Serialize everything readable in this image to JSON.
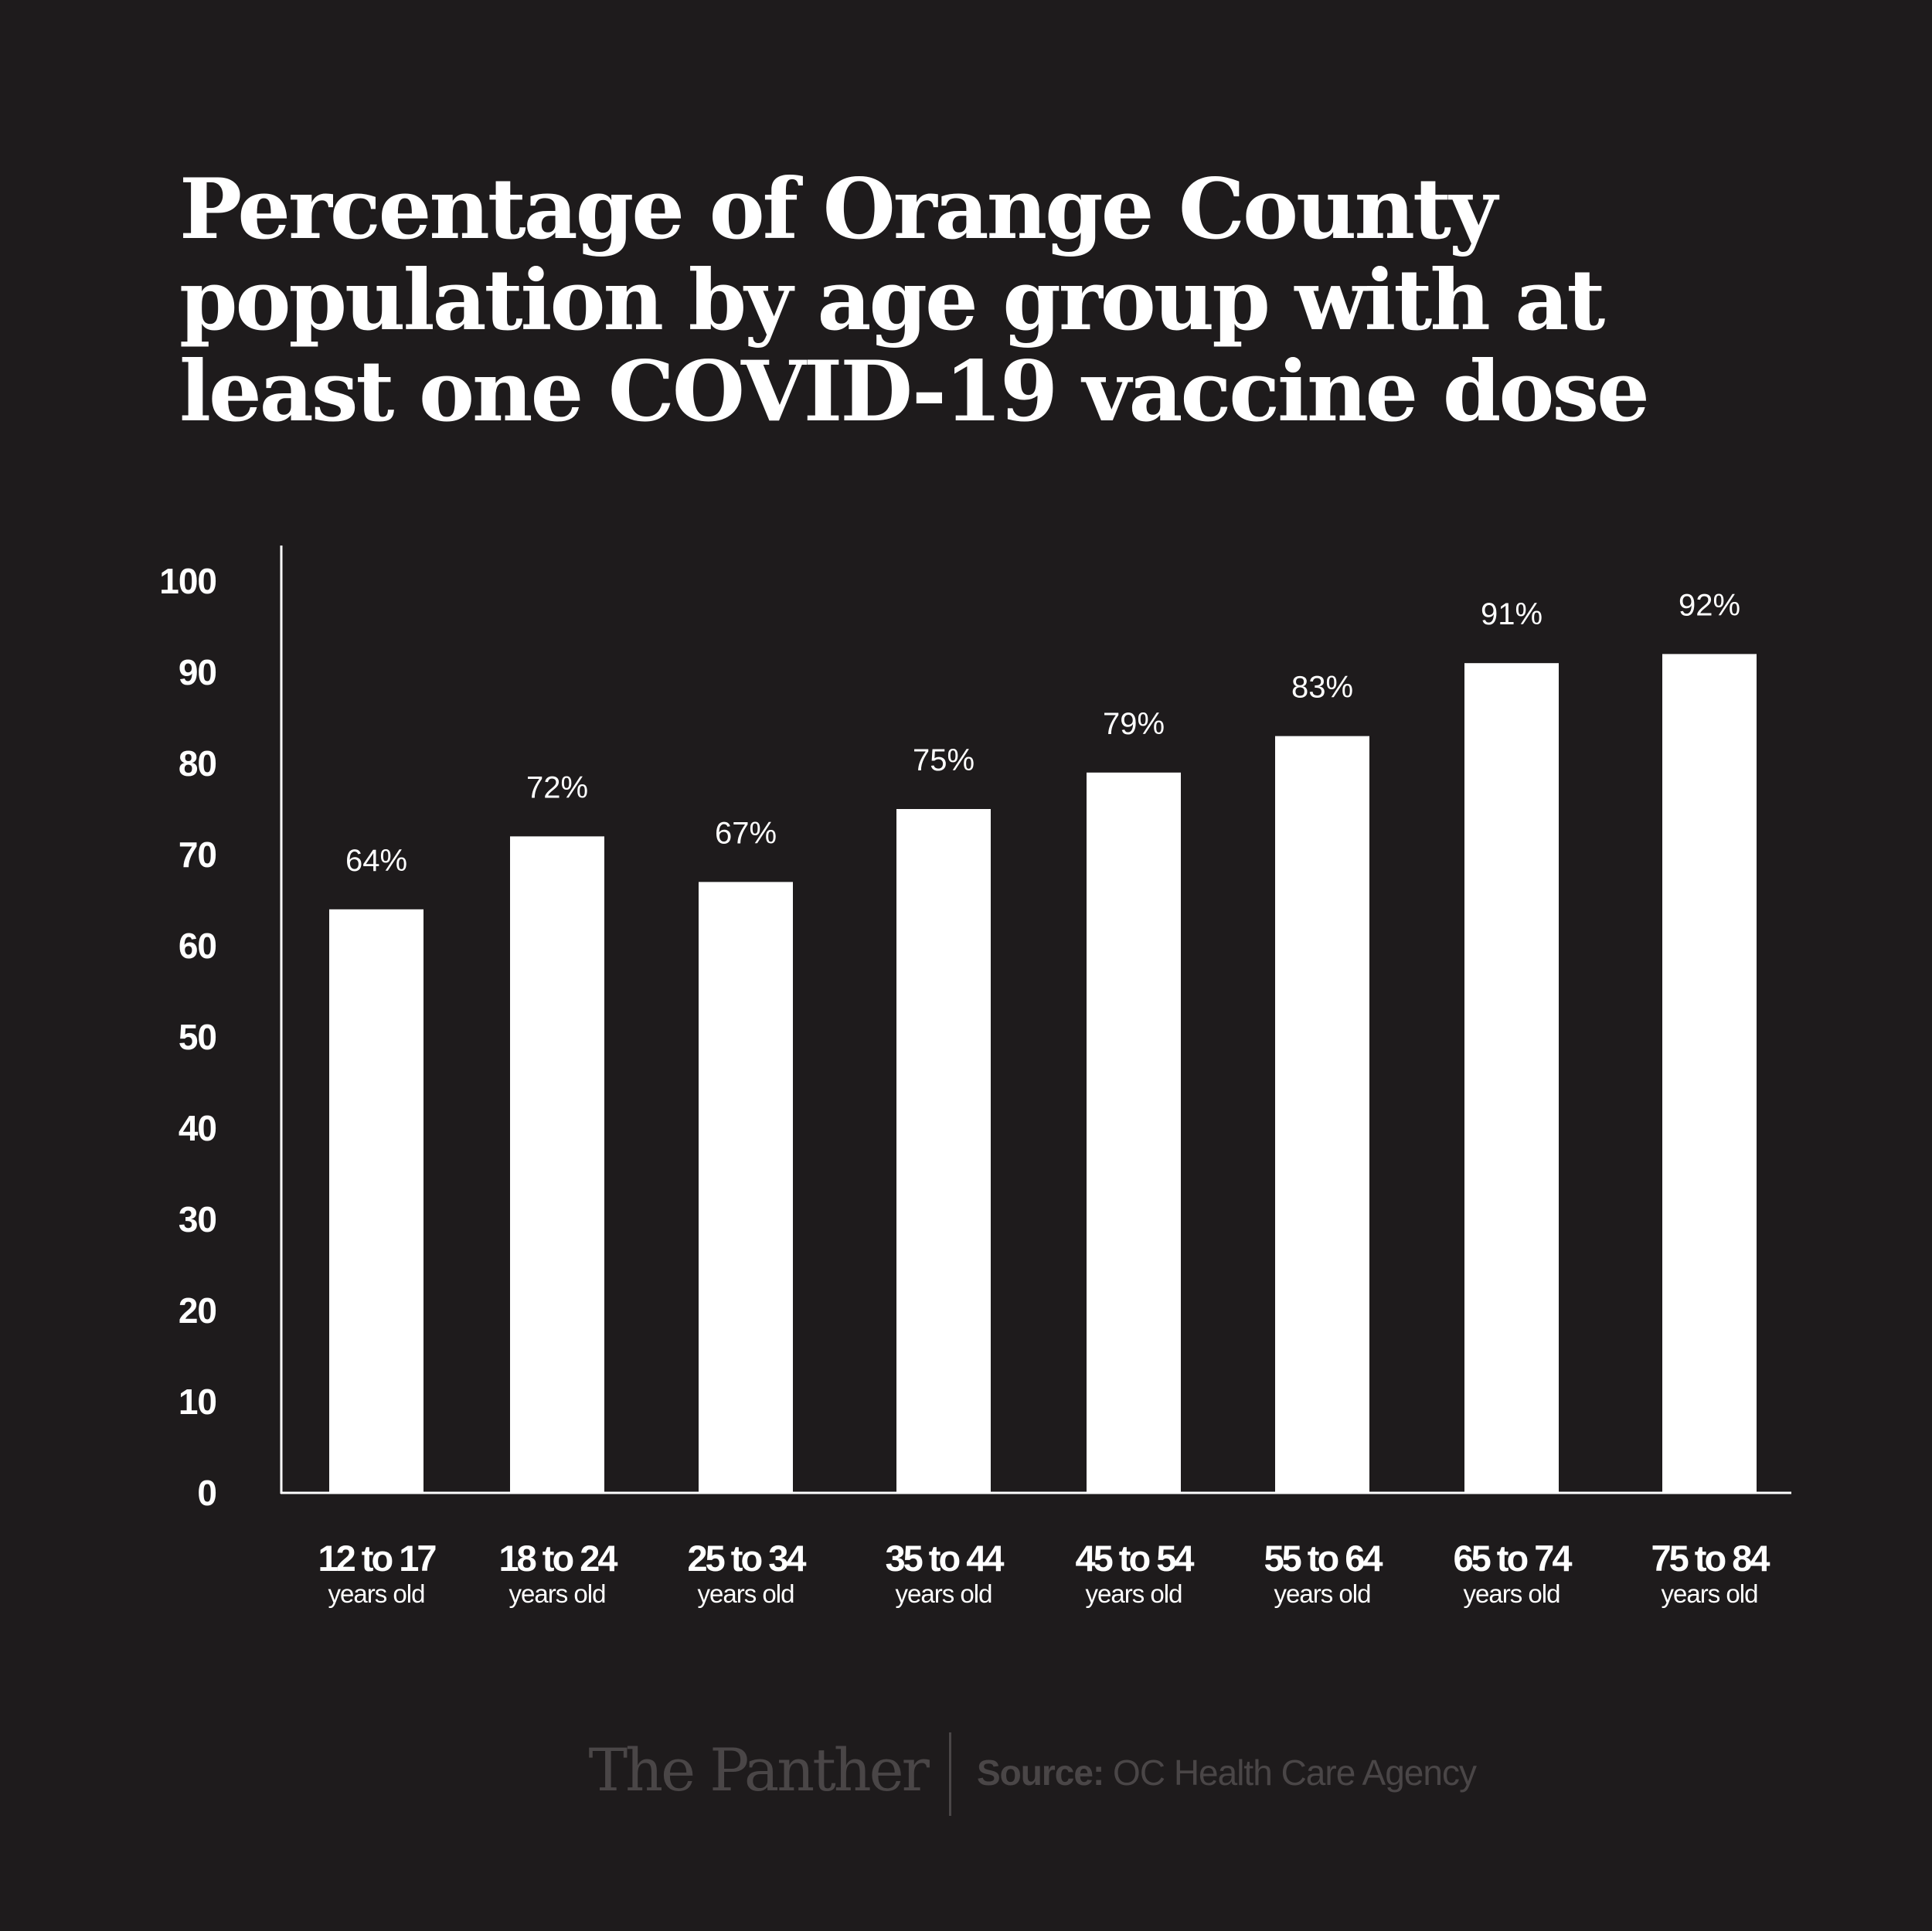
{
  "colors": {
    "background": "#1e1b1c",
    "bar": "#ffffff",
    "text": "#ffffff",
    "footer": "#4a4647"
  },
  "chart_data": {
    "type": "bar",
    "title": "Percentage of Orange County population by age group with at least one COVID-19 vaccine dose",
    "categories": [
      "12 to 17",
      "18 to 24",
      "25 to 34",
      "35 to 44",
      "45 to 54",
      "55 to 64",
      "65 to 74",
      "75 to 84"
    ],
    "category_sublabel": "years old",
    "values": [
      64,
      72,
      67,
      75,
      79,
      83,
      91,
      92
    ],
    "data_labels": [
      "64%",
      "72%",
      "67%",
      "75%",
      "79%",
      "83%",
      "91%",
      "92%"
    ],
    "yticks": [
      0,
      10,
      20,
      30,
      40,
      50,
      60,
      70,
      80,
      90,
      100
    ],
    "ylim": [
      0,
      100
    ],
    "xlabel": "",
    "ylabel": "",
    "grid": false
  },
  "footer": {
    "logo": "The Panther",
    "source_label": "Source:",
    "source_text": "OC Health Care Agency"
  }
}
